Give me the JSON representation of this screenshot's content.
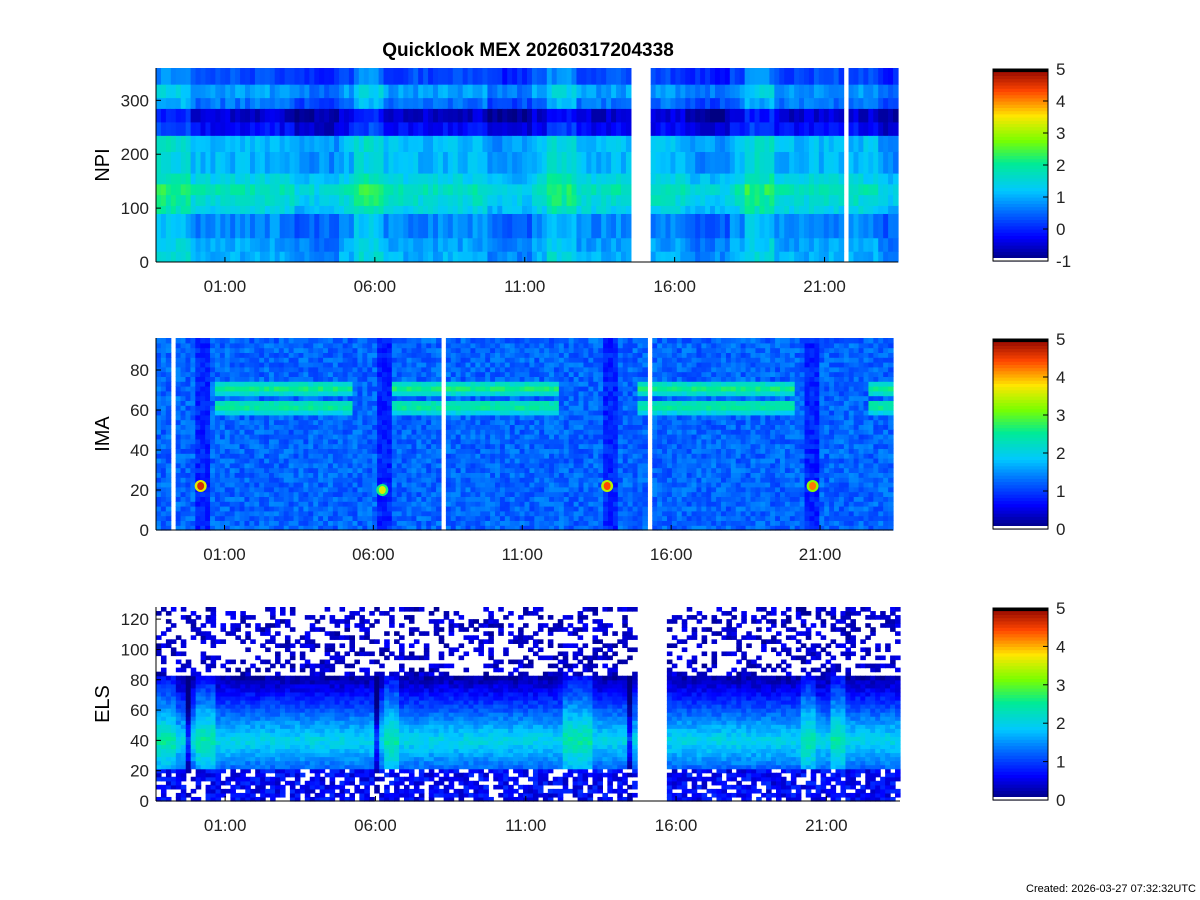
{
  "figure_title": "Quicklook MEX 20260317204338",
  "footer": "Created: 2026-03-27 07:32:32UTC",
  "chart_data": [
    {
      "type": "heatmap",
      "ylabel": "NPI",
      "xlabel": "",
      "x_tick_labels": [
        "01:00",
        "06:00",
        "11:00",
        "16:00",
        "21:00"
      ],
      "x_tick_hours": [
        1,
        6,
        11,
        16,
        21
      ],
      "x_range_hours": [
        -1.3,
        23.45
      ],
      "ylim": [
        0,
        360
      ],
      "y_ticks": [
        0,
        100,
        200,
        300
      ],
      "colorbar": {
        "range": [
          -1,
          5
        ],
        "ticks": [
          -1,
          0,
          1,
          2,
          3,
          4,
          5
        ]
      },
      "data_gaps_hours": [
        [
          14.6,
          15.25
        ],
        [
          21.65,
          21.8
        ]
      ],
      "npi_bands": [
        {
          "from": 0,
          "to": 20,
          "level": 1.0
        },
        {
          "from": 20,
          "to": 45,
          "level": 0.9
        },
        {
          "from": 45,
          "to": 90,
          "level": 0.7
        },
        {
          "from": 90,
          "to": 105,
          "level": 1.35
        },
        {
          "from": 105,
          "to": 125,
          "level": 1.55
        },
        {
          "from": 125,
          "to": 145,
          "level": 1.75
        },
        {
          "from": 145,
          "to": 165,
          "level": 1.35
        },
        {
          "from": 165,
          "to": 205,
          "level": 1.05
        },
        {
          "from": 205,
          "to": 235,
          "level": 1.1
        },
        {
          "from": 235,
          "to": 260,
          "level": -0.25
        },
        {
          "from": 260,
          "to": 285,
          "level": -0.55
        },
        {
          "from": 285,
          "to": 305,
          "level": 0.55
        },
        {
          "from": 305,
          "to": 330,
          "level": 0.85
        },
        {
          "from": 330,
          "to": 360,
          "level": 0.25
        }
      ]
    },
    {
      "type": "heatmap",
      "ylabel": "IMA",
      "xlabel": "",
      "x_tick_labels": [
        "01:00",
        "06:00",
        "11:00",
        "16:00",
        "21:00"
      ],
      "x_tick_hours": [
        1,
        6,
        11,
        16,
        21
      ],
      "x_range_hours": [
        -1.3,
        23.45
      ],
      "ylim": [
        0,
        96
      ],
      "y_ticks": [
        0,
        20,
        40,
        60,
        80
      ],
      "colorbar": {
        "range": [
          0,
          5
        ],
        "ticks": [
          0,
          1,
          2,
          3,
          4,
          5
        ]
      },
      "background_level": 1.2,
      "data_gaps_hours": [
        [
          -0.8,
          -0.7
        ],
        [
          8.35,
          8.45
        ],
        [
          14.7,
          14.75
        ],
        [
          15.25,
          15.4
        ],
        [
          21.75,
          21.85
        ]
      ],
      "low_count_dips_hours": [
        [
          0.0,
          0.55
        ],
        [
          6.1,
          6.55
        ],
        [
          13.65,
          14.15
        ],
        [
          20.55,
          21.05
        ]
      ],
      "ion_line_intervals_hours": [
        [
          0.65,
          5.3
        ],
        [
          6.7,
          12.3
        ],
        [
          14.85,
          20.1
        ],
        [
          22.6,
          23.45
        ]
      ],
      "ion_line_energies": [
        71,
        62
      ],
      "ion_line_level": 2.6,
      "hot_spots": [
        {
          "hour": 0.2,
          "energy": 22,
          "level": 4.6
        },
        {
          "hour": 6.3,
          "energy": 20,
          "level": 3.6
        },
        {
          "hour": 13.85,
          "energy": 22,
          "level": 4.4
        },
        {
          "hour": 20.75,
          "energy": 22,
          "level": 4.2
        }
      ]
    },
    {
      "type": "heatmap",
      "ylabel": "ELS",
      "xlabel": "",
      "x_tick_labels": [
        "01:00",
        "06:00",
        "11:00",
        "16:00",
        "21:00"
      ],
      "x_tick_hours": [
        1,
        6,
        11,
        16,
        21
      ],
      "x_range_hours": [
        -1.3,
        23.45
      ],
      "ylim": [
        0,
        128
      ],
      "y_ticks": [
        0,
        20,
        40,
        60,
        80,
        100,
        120
      ],
      "colorbar": {
        "range": [
          0,
          5
        ],
        "ticks": [
          0,
          1,
          2,
          3,
          4,
          5
        ]
      },
      "data_gaps_hours": [
        [
          14.65,
          15.65
        ]
      ],
      "main_band_energy": [
        22,
        82
      ],
      "peak_energy": 40,
      "peak_level": 2.0,
      "bright_intervals_hours": [
        [
          -1.3,
          -0.6
        ],
        [
          0.1,
          0.6
        ],
        [
          6.3,
          6.8
        ],
        [
          12.3,
          13.2
        ],
        [
          20.1,
          20.7
        ],
        [
          21.2,
          21.7
        ]
      ],
      "low_intervals_hours": [
        [
          -0.3,
          -0.1
        ],
        [
          6.0,
          6.2
        ],
        [
          14.45,
          14.6
        ]
      ]
    }
  ]
}
